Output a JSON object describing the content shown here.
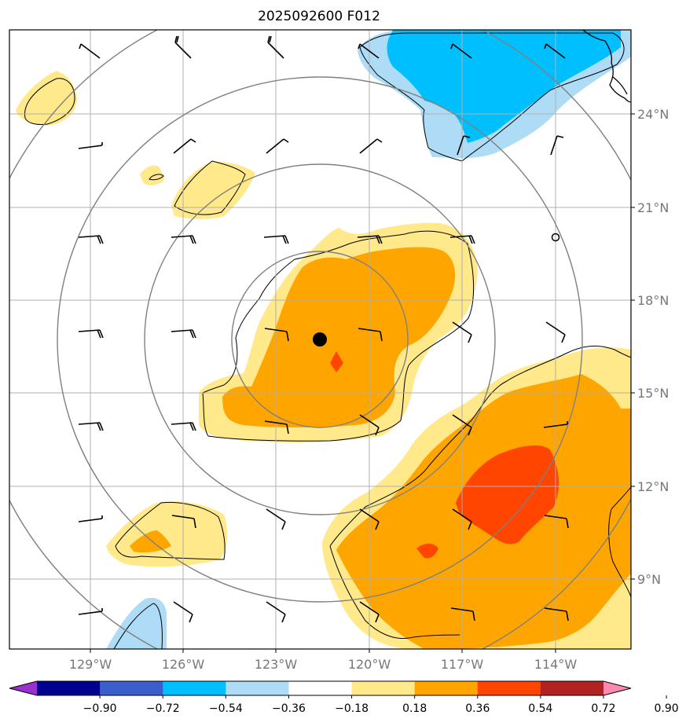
{
  "title": "2025092600 F012",
  "map": {
    "lon_range": [
      -131,
      -111
    ],
    "lat_range": [
      7,
      27
    ],
    "x_tick_labels": [
      "129°W",
      "126°W",
      "123°W",
      "120°W",
      "117°W",
      "114°W"
    ],
    "y_tick_labels": [
      "24°N",
      "21°N",
      "18°N",
      "15°N",
      "12°N",
      "9°N"
    ],
    "center_marker": "filled black circle",
    "range_rings": 4,
    "wind_barbs": "wind-barb-icon",
    "open_circle_marker": "calm-wind-circle-icon"
  },
  "colorbar": {
    "labels": [
      "−0.90",
      "−0.72",
      "−0.54",
      "−0.36",
      "−0.18",
      "0.18",
      "0.36",
      "0.54",
      "0.72",
      "0.90"
    ],
    "colors": [
      "#9b30d0",
      "#000090",
      "#3a5fcd",
      "#00bfff",
      "#aedcf6",
      "#ffffff",
      "#ffe98a",
      "#ffa500",
      "#ff4500",
      "#b22222",
      "#ff88b0"
    ],
    "extend": "both"
  },
  "legend_colors": {
    "light_yellow": "#ffe98a",
    "orange": "#ffa500",
    "red_orange": "#ff4500",
    "light_blue": "#aedcf6",
    "deep_sky_blue": "#00bfff"
  }
}
